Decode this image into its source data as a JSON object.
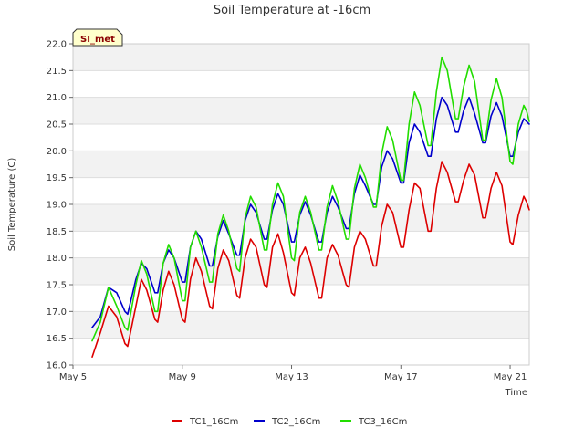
{
  "badge": {
    "label": "SI_met"
  },
  "chart_data": {
    "type": "line",
    "title": "Soil Temperature at -16cm",
    "xlabel": "Time",
    "ylabel": "Soil Temperature (C)",
    "ylim": [
      16.0,
      22.0
    ],
    "yticks": [
      "16.0",
      "16.5",
      "17.0",
      "17.5",
      "18.0",
      "18.5",
      "19.0",
      "19.5",
      "20.0",
      "20.5",
      "21.0",
      "21.5",
      "22.0"
    ],
    "xlim_days": [
      5.0,
      21.7
    ],
    "xticks": [
      {
        "label": "May 5",
        "day": 5
      },
      {
        "label": "May 9",
        "day": 9
      },
      {
        "label": "May 13",
        "day": 13
      },
      {
        "label": "May 17",
        "day": 17
      },
      {
        "label": "May 21",
        "day": 21
      }
    ],
    "grid": true,
    "background_bands": true,
    "legend_position": "bottom",
    "series": [
      {
        "name": "TC1_16Cm",
        "color": "#dd0000",
        "points": [
          [
            5.7,
            16.15
          ],
          [
            6.0,
            16.6
          ],
          [
            6.3,
            17.1
          ],
          [
            6.6,
            16.9
          ],
          [
            6.9,
            16.4
          ],
          [
            7.0,
            16.35
          ],
          [
            7.3,
            17.1
          ],
          [
            7.5,
            17.6
          ],
          [
            7.7,
            17.4
          ],
          [
            8.0,
            16.85
          ],
          [
            8.1,
            16.8
          ],
          [
            8.3,
            17.4
          ],
          [
            8.5,
            17.75
          ],
          [
            8.7,
            17.5
          ],
          [
            9.0,
            16.85
          ],
          [
            9.1,
            16.8
          ],
          [
            9.3,
            17.6
          ],
          [
            9.5,
            18.0
          ],
          [
            9.7,
            17.75
          ],
          [
            10.0,
            17.1
          ],
          [
            10.1,
            17.05
          ],
          [
            10.3,
            17.8
          ],
          [
            10.5,
            18.15
          ],
          [
            10.7,
            17.95
          ],
          [
            11.0,
            17.3
          ],
          [
            11.1,
            17.25
          ],
          [
            11.3,
            18.0
          ],
          [
            11.5,
            18.35
          ],
          [
            11.7,
            18.2
          ],
          [
            12.0,
            17.5
          ],
          [
            12.1,
            17.45
          ],
          [
            12.3,
            18.2
          ],
          [
            12.5,
            18.45
          ],
          [
            12.7,
            18.1
          ],
          [
            13.0,
            17.35
          ],
          [
            13.1,
            17.3
          ],
          [
            13.3,
            18.0
          ],
          [
            13.5,
            18.2
          ],
          [
            13.7,
            17.9
          ],
          [
            14.0,
            17.25
          ],
          [
            14.1,
            17.25
          ],
          [
            14.3,
            18.0
          ],
          [
            14.5,
            18.25
          ],
          [
            14.7,
            18.05
          ],
          [
            15.0,
            17.5
          ],
          [
            15.1,
            17.45
          ],
          [
            15.3,
            18.2
          ],
          [
            15.5,
            18.5
          ],
          [
            15.7,
            18.35
          ],
          [
            16.0,
            17.85
          ],
          [
            16.1,
            17.85
          ],
          [
            16.3,
            18.6
          ],
          [
            16.5,
            19.0
          ],
          [
            16.7,
            18.85
          ],
          [
            17.0,
            18.2
          ],
          [
            17.1,
            18.2
          ],
          [
            17.3,
            18.9
          ],
          [
            17.5,
            19.4
          ],
          [
            17.7,
            19.3
          ],
          [
            18.0,
            18.5
          ],
          [
            18.1,
            18.5
          ],
          [
            18.3,
            19.3
          ],
          [
            18.5,
            19.8
          ],
          [
            18.7,
            19.6
          ],
          [
            19.0,
            19.05
          ],
          [
            19.1,
            19.05
          ],
          [
            19.3,
            19.45
          ],
          [
            19.5,
            19.75
          ],
          [
            19.7,
            19.55
          ],
          [
            20.0,
            18.75
          ],
          [
            20.1,
            18.75
          ],
          [
            20.3,
            19.3
          ],
          [
            20.5,
            19.6
          ],
          [
            20.7,
            19.35
          ],
          [
            21.0,
            18.3
          ],
          [
            21.1,
            18.25
          ],
          [
            21.3,
            18.8
          ],
          [
            21.5,
            19.15
          ],
          [
            21.6,
            19.05
          ],
          [
            21.7,
            18.9
          ]
        ]
      },
      {
        "name": "TC2_16Cm",
        "color": "#0000cc",
        "points": [
          [
            5.7,
            16.7
          ],
          [
            6.0,
            16.9
          ],
          [
            6.3,
            17.45
          ],
          [
            6.6,
            17.35
          ],
          [
            6.9,
            17.0
          ],
          [
            7.0,
            16.95
          ],
          [
            7.3,
            17.6
          ],
          [
            7.5,
            17.9
          ],
          [
            7.7,
            17.8
          ],
          [
            8.0,
            17.35
          ],
          [
            8.1,
            17.35
          ],
          [
            8.3,
            17.9
          ],
          [
            8.5,
            18.15
          ],
          [
            8.7,
            18.0
          ],
          [
            9.0,
            17.55
          ],
          [
            9.1,
            17.55
          ],
          [
            9.3,
            18.2
          ],
          [
            9.5,
            18.5
          ],
          [
            9.7,
            18.35
          ],
          [
            10.0,
            17.85
          ],
          [
            10.1,
            17.85
          ],
          [
            10.3,
            18.4
          ],
          [
            10.5,
            18.7
          ],
          [
            10.7,
            18.45
          ],
          [
            11.0,
            18.05
          ],
          [
            11.1,
            18.05
          ],
          [
            11.3,
            18.7
          ],
          [
            11.5,
            19.0
          ],
          [
            11.7,
            18.85
          ],
          [
            12.0,
            18.35
          ],
          [
            12.1,
            18.35
          ],
          [
            12.3,
            18.9
          ],
          [
            12.5,
            19.2
          ],
          [
            12.7,
            19.0
          ],
          [
            13.0,
            18.3
          ],
          [
            13.1,
            18.3
          ],
          [
            13.3,
            18.8
          ],
          [
            13.5,
            19.05
          ],
          [
            13.7,
            18.8
          ],
          [
            14.0,
            18.3
          ],
          [
            14.1,
            18.3
          ],
          [
            14.3,
            18.85
          ],
          [
            14.5,
            19.15
          ],
          [
            14.7,
            18.95
          ],
          [
            15.0,
            18.55
          ],
          [
            15.1,
            18.55
          ],
          [
            15.3,
            19.2
          ],
          [
            15.5,
            19.55
          ],
          [
            15.7,
            19.35
          ],
          [
            16.0,
            19.0
          ],
          [
            16.1,
            19.0
          ],
          [
            16.3,
            19.7
          ],
          [
            16.5,
            20.0
          ],
          [
            16.7,
            19.85
          ],
          [
            17.0,
            19.4
          ],
          [
            17.1,
            19.4
          ],
          [
            17.3,
            20.15
          ],
          [
            17.5,
            20.5
          ],
          [
            17.7,
            20.35
          ],
          [
            18.0,
            19.9
          ],
          [
            18.1,
            19.9
          ],
          [
            18.3,
            20.6
          ],
          [
            18.5,
            21.0
          ],
          [
            18.7,
            20.85
          ],
          [
            19.0,
            20.35
          ],
          [
            19.1,
            20.35
          ],
          [
            19.3,
            20.75
          ],
          [
            19.5,
            21.0
          ],
          [
            19.7,
            20.7
          ],
          [
            20.0,
            20.15
          ],
          [
            20.1,
            20.15
          ],
          [
            20.3,
            20.65
          ],
          [
            20.5,
            20.9
          ],
          [
            20.7,
            20.65
          ],
          [
            21.0,
            19.9
          ],
          [
            21.1,
            19.9
          ],
          [
            21.3,
            20.35
          ],
          [
            21.5,
            20.6
          ],
          [
            21.6,
            20.55
          ],
          [
            21.7,
            20.5
          ]
        ]
      },
      {
        "name": "TC3_16Cm",
        "color": "#22dd00",
        "points": [
          [
            5.7,
            16.45
          ],
          [
            6.0,
            16.8
          ],
          [
            6.3,
            17.45
          ],
          [
            6.6,
            17.1
          ],
          [
            6.9,
            16.7
          ],
          [
            7.0,
            16.65
          ],
          [
            7.3,
            17.5
          ],
          [
            7.5,
            17.95
          ],
          [
            7.7,
            17.7
          ],
          [
            8.0,
            17.0
          ],
          [
            8.1,
            17.0
          ],
          [
            8.3,
            17.9
          ],
          [
            8.5,
            18.25
          ],
          [
            8.7,
            18.0
          ],
          [
            9.0,
            17.2
          ],
          [
            9.1,
            17.2
          ],
          [
            9.3,
            18.2
          ],
          [
            9.5,
            18.5
          ],
          [
            9.7,
            18.2
          ],
          [
            10.0,
            17.55
          ],
          [
            10.1,
            17.55
          ],
          [
            10.3,
            18.45
          ],
          [
            10.5,
            18.8
          ],
          [
            10.7,
            18.5
          ],
          [
            11.0,
            17.8
          ],
          [
            11.1,
            17.75
          ],
          [
            11.3,
            18.75
          ],
          [
            11.5,
            19.15
          ],
          [
            11.7,
            18.95
          ],
          [
            12.0,
            18.15
          ],
          [
            12.1,
            18.15
          ],
          [
            12.3,
            19.0
          ],
          [
            12.5,
            19.4
          ],
          [
            12.7,
            19.15
          ],
          [
            13.0,
            18.0
          ],
          [
            13.1,
            17.95
          ],
          [
            13.3,
            18.85
          ],
          [
            13.5,
            19.15
          ],
          [
            13.7,
            18.85
          ],
          [
            14.0,
            18.15
          ],
          [
            14.1,
            18.15
          ],
          [
            14.3,
            18.95
          ],
          [
            14.5,
            19.35
          ],
          [
            14.7,
            19.05
          ],
          [
            15.0,
            18.35
          ],
          [
            15.1,
            18.35
          ],
          [
            15.3,
            19.3
          ],
          [
            15.5,
            19.75
          ],
          [
            15.7,
            19.5
          ],
          [
            16.0,
            18.95
          ],
          [
            16.1,
            18.95
          ],
          [
            16.3,
            19.95
          ],
          [
            16.5,
            20.45
          ],
          [
            16.7,
            20.2
          ],
          [
            17.0,
            19.45
          ],
          [
            17.1,
            19.45
          ],
          [
            17.3,
            20.5
          ],
          [
            17.5,
            21.1
          ],
          [
            17.7,
            20.85
          ],
          [
            18.0,
            20.1
          ],
          [
            18.1,
            20.1
          ],
          [
            18.3,
            21.1
          ],
          [
            18.5,
            21.75
          ],
          [
            18.7,
            21.5
          ],
          [
            19.0,
            20.6
          ],
          [
            19.1,
            20.6
          ],
          [
            19.3,
            21.2
          ],
          [
            19.5,
            21.6
          ],
          [
            19.7,
            21.3
          ],
          [
            20.0,
            20.2
          ],
          [
            20.1,
            20.2
          ],
          [
            20.3,
            20.95
          ],
          [
            20.5,
            21.35
          ],
          [
            20.7,
            21.0
          ],
          [
            21.0,
            19.8
          ],
          [
            21.1,
            19.75
          ],
          [
            21.3,
            20.5
          ],
          [
            21.5,
            20.85
          ],
          [
            21.6,
            20.75
          ],
          [
            21.7,
            20.55
          ]
        ]
      }
    ]
  }
}
